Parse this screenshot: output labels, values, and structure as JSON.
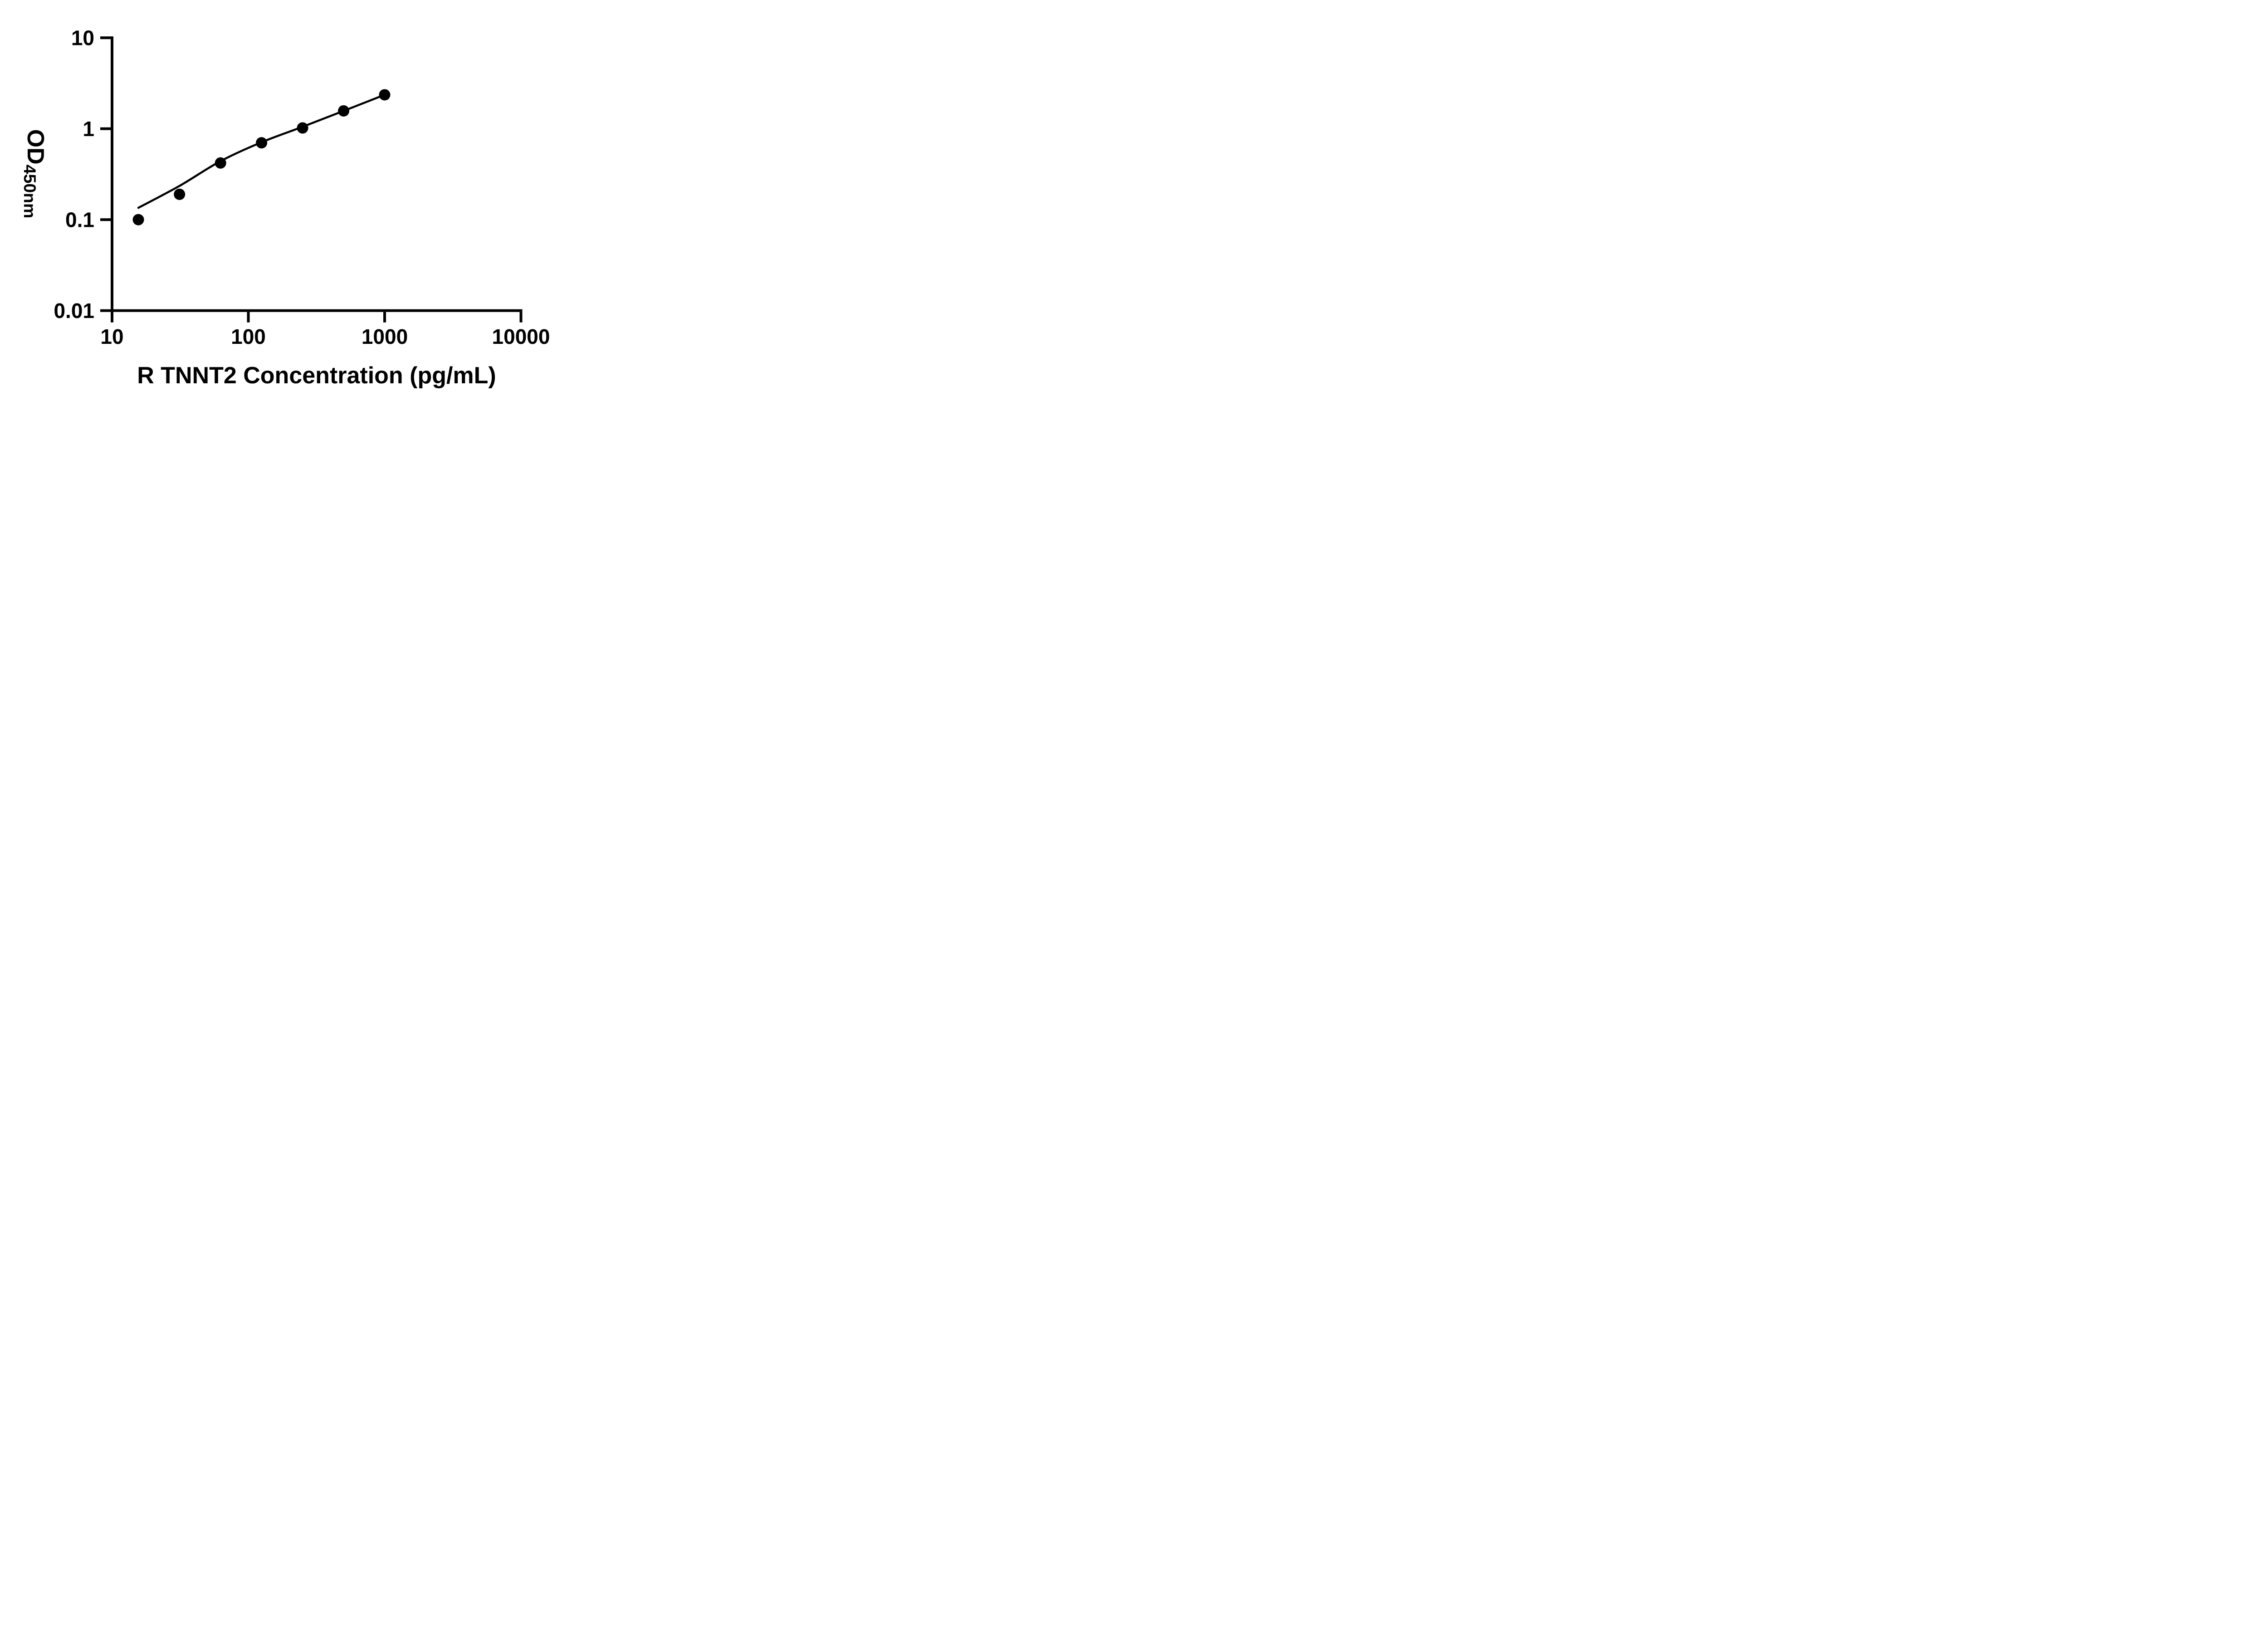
{
  "figure": {
    "background_color": "#ffffff",
    "ink_color": "#000000"
  },
  "chart_data": {
    "type": "scatter",
    "title": "",
    "xlabel": "R TNNT2 Concentration (pg/mL)",
    "ylabel": "OD",
    "ylabel_subscript": "450nm",
    "x_scale": "log10",
    "y_scale": "log10",
    "xlim": [
      10,
      10000
    ],
    "ylim": [
      0.01,
      10
    ],
    "x_ticks": [
      10,
      100,
      1000,
      10000
    ],
    "x_tick_labels": [
      "10",
      "100",
      "1000",
      "10000"
    ],
    "y_ticks": [
      10,
      1,
      0.1,
      0.01
    ],
    "y_tick_labels": [
      "10",
      "1",
      "0.1",
      "0.01"
    ],
    "grid": false,
    "legend": "none",
    "marker_color": "#000000",
    "line_color": "#000000",
    "series": [
      {
        "name": "standard-points",
        "type": "scatter",
        "marker": "filled-circle",
        "x": [
          15.6,
          31.25,
          62.5,
          125,
          250,
          500,
          1000
        ],
        "y": [
          0.1,
          0.19,
          0.42,
          0.7,
          1.02,
          1.57,
          2.36
        ]
      },
      {
        "name": "fit-curve",
        "type": "line",
        "x": [
          15.6,
          31.25,
          62.5,
          125,
          250,
          500,
          1000
        ],
        "y": [
          0.135,
          0.235,
          0.44,
          0.71,
          1.05,
          1.57,
          2.36
        ]
      }
    ]
  }
}
